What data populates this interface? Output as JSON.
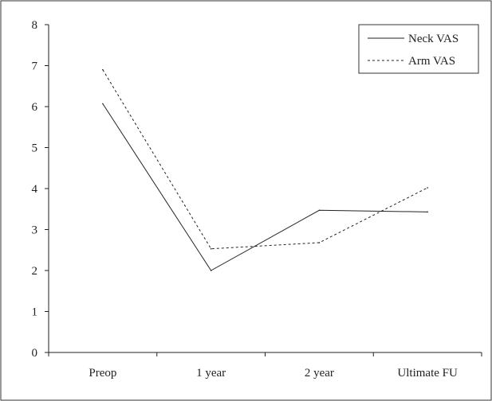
{
  "chart_data": {
    "type": "line",
    "categories": [
      "Preop",
      "1 year",
      "2 year",
      "Ultimate FU"
    ],
    "series": [
      {
        "name": "Neck VAS",
        "values": [
          6.07,
          2.0,
          3.47,
          3.43
        ],
        "style": "solid"
      },
      {
        "name": "Arm VAS",
        "values": [
          6.9,
          2.53,
          2.68,
          4.02
        ],
        "style": "dashed"
      }
    ],
    "ylim": [
      0,
      8
    ],
    "yticks": [
      "0",
      "1",
      "2",
      "3",
      "4",
      "5",
      "6",
      "7",
      "8"
    ],
    "title": "",
    "xlabel": "",
    "ylabel": "",
    "grid": false,
    "legend_position": "top-right",
    "line_color": "#222222"
  }
}
